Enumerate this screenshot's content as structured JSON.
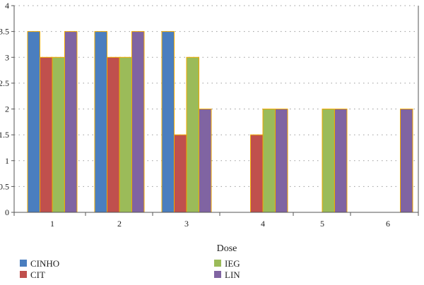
{
  "chart_data": {
    "type": "bar",
    "title": "",
    "xlabel": "Dose",
    "ylabel": "",
    "categories": [
      "1",
      "2",
      "3",
      "4",
      "5",
      "6"
    ],
    "ylim": [
      0,
      4
    ],
    "yticks": [
      "0",
      "0.5",
      "1",
      "1.5",
      "2",
      "2.5",
      "3",
      "3.5",
      "4"
    ],
    "grid": "horizontal dotted",
    "legend_position": "bottom",
    "series": [
      {
        "name": "CINHO",
        "color": "#4a7ebf",
        "values": [
          3.5,
          3.5,
          3.5,
          null,
          null,
          null
        ]
      },
      {
        "name": "CIT",
        "color": "#c0504d",
        "values": [
          3,
          3,
          1.5,
          1.5,
          null,
          null
        ]
      },
      {
        "name": "IEG",
        "color": "#9bbb59",
        "values": [
          3,
          3,
          3,
          2,
          2,
          null
        ]
      },
      {
        "name": "LIN",
        "color": "#8064a2",
        "values": [
          3.5,
          3.5,
          2,
          2,
          2,
          2
        ]
      }
    ],
    "bar_outline_color": "#f2a900"
  }
}
